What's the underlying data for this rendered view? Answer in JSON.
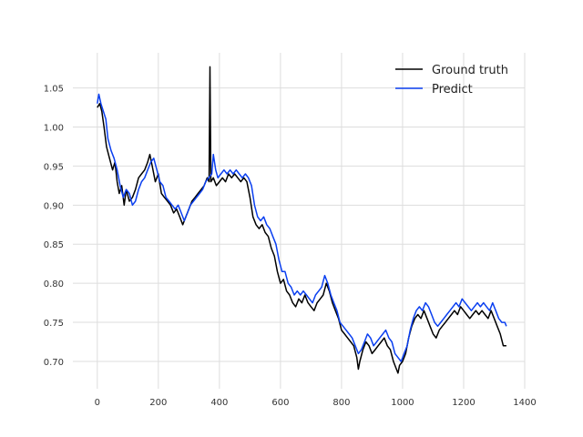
{
  "chart_data": {
    "type": "line",
    "title": "",
    "xlabel": "",
    "ylabel": "",
    "xlim": [
      -80,
      1400
    ],
    "ylim": [
      0.665,
      1.095
    ],
    "xticks": [
      0,
      200,
      400,
      600,
      800,
      1000,
      1200,
      1400
    ],
    "yticks": [
      0.7,
      0.75,
      0.8,
      0.85,
      0.9,
      0.95,
      1.0,
      1.05
    ],
    "xtick_labels": [
      "0",
      "200",
      "400",
      "600",
      "800",
      "1000",
      "1200",
      "1400"
    ],
    "ytick_labels": [
      "0.70",
      "0.75",
      "0.80",
      "0.85",
      "0.90",
      "0.95",
      "1.00",
      "1.05"
    ],
    "grid": true,
    "legend_position": "top-right",
    "series": [
      {
        "name": "Ground truth",
        "color": "#000000",
        "points": [
          [
            0,
            1.025
          ],
          [
            8,
            1.03
          ],
          [
            15,
            1.02
          ],
          [
            22,
            1.0
          ],
          [
            30,
            0.975
          ],
          [
            40,
            0.96
          ],
          [
            50,
            0.945
          ],
          [
            58,
            0.955
          ],
          [
            65,
            0.93
          ],
          [
            72,
            0.915
          ],
          [
            80,
            0.925
          ],
          [
            88,
            0.9
          ],
          [
            95,
            0.92
          ],
          [
            105,
            0.905
          ],
          [
            115,
            0.91
          ],
          [
            125,
            0.92
          ],
          [
            135,
            0.935
          ],
          [
            145,
            0.94
          ],
          [
            155,
            0.945
          ],
          [
            165,
            0.955
          ],
          [
            172,
            0.965
          ],
          [
            180,
            0.95
          ],
          [
            190,
            0.93
          ],
          [
            200,
            0.94
          ],
          [
            210,
            0.915
          ],
          [
            220,
            0.91
          ],
          [
            230,
            0.905
          ],
          [
            240,
            0.9
          ],
          [
            250,
            0.89
          ],
          [
            260,
            0.895
          ],
          [
            270,
            0.885
          ],
          [
            280,
            0.875
          ],
          [
            290,
            0.885
          ],
          [
            300,
            0.895
          ],
          [
            310,
            0.905
          ],
          [
            320,
            0.91
          ],
          [
            330,
            0.915
          ],
          [
            340,
            0.92
          ],
          [
            350,
            0.925
          ],
          [
            360,
            0.935
          ],
          [
            366,
            0.93
          ],
          [
            369,
            1.077
          ],
          [
            372,
            0.93
          ],
          [
            380,
            0.935
          ],
          [
            390,
            0.925
          ],
          [
            400,
            0.93
          ],
          [
            410,
            0.935
          ],
          [
            420,
            0.93
          ],
          [
            430,
            0.94
          ],
          [
            440,
            0.935
          ],
          [
            450,
            0.94
          ],
          [
            460,
            0.935
          ],
          [
            470,
            0.93
          ],
          [
            480,
            0.935
          ],
          [
            490,
            0.93
          ],
          [
            500,
            0.91
          ],
          [
            510,
            0.885
          ],
          [
            520,
            0.875
          ],
          [
            530,
            0.87
          ],
          [
            540,
            0.875
          ],
          [
            550,
            0.865
          ],
          [
            560,
            0.86
          ],
          [
            570,
            0.845
          ],
          [
            580,
            0.835
          ],
          [
            590,
            0.815
          ],
          [
            600,
            0.8
          ],
          [
            610,
            0.805
          ],
          [
            620,
            0.79
          ],
          [
            630,
            0.785
          ],
          [
            640,
            0.775
          ],
          [
            650,
            0.77
          ],
          [
            660,
            0.78
          ],
          [
            670,
            0.775
          ],
          [
            680,
            0.785
          ],
          [
            690,
            0.775
          ],
          [
            700,
            0.77
          ],
          [
            710,
            0.765
          ],
          [
            720,
            0.775
          ],
          [
            730,
            0.78
          ],
          [
            740,
            0.785
          ],
          [
            750,
            0.8
          ],
          [
            760,
            0.79
          ],
          [
            770,
            0.775
          ],
          [
            780,
            0.765
          ],
          [
            790,
            0.755
          ],
          [
            800,
            0.74
          ],
          [
            810,
            0.735
          ],
          [
            820,
            0.73
          ],
          [
            830,
            0.725
          ],
          [
            840,
            0.72
          ],
          [
            850,
            0.705
          ],
          [
            855,
            0.69
          ],
          [
            860,
            0.7
          ],
          [
            870,
            0.715
          ],
          [
            880,
            0.725
          ],
          [
            890,
            0.72
          ],
          [
            900,
            0.71
          ],
          [
            910,
            0.715
          ],
          [
            920,
            0.72
          ],
          [
            930,
            0.725
          ],
          [
            940,
            0.73
          ],
          [
            950,
            0.72
          ],
          [
            960,
            0.715
          ],
          [
            970,
            0.7
          ],
          [
            980,
            0.69
          ],
          [
            985,
            0.685
          ],
          [
            990,
            0.695
          ],
          [
            1000,
            0.7
          ],
          [
            1010,
            0.71
          ],
          [
            1020,
            0.73
          ],
          [
            1030,
            0.745
          ],
          [
            1040,
            0.755
          ],
          [
            1050,
            0.76
          ],
          [
            1060,
            0.755
          ],
          [
            1070,
            0.765
          ],
          [
            1080,
            0.755
          ],
          [
            1090,
            0.745
          ],
          [
            1100,
            0.735
          ],
          [
            1110,
            0.73
          ],
          [
            1120,
            0.74
          ],
          [
            1130,
            0.745
          ],
          [
            1140,
            0.75
          ],
          [
            1150,
            0.755
          ],
          [
            1160,
            0.76
          ],
          [
            1170,
            0.765
          ],
          [
            1180,
            0.76
          ],
          [
            1190,
            0.77
          ],
          [
            1200,
            0.765
          ],
          [
            1210,
            0.76
          ],
          [
            1220,
            0.755
          ],
          [
            1230,
            0.76
          ],
          [
            1240,
            0.765
          ],
          [
            1250,
            0.76
          ],
          [
            1260,
            0.765
          ],
          [
            1270,
            0.76
          ],
          [
            1280,
            0.755
          ],
          [
            1290,
            0.765
          ],
          [
            1300,
            0.755
          ],
          [
            1310,
            0.745
          ],
          [
            1320,
            0.735
          ],
          [
            1330,
            0.72
          ],
          [
            1340,
            0.72
          ]
        ]
      },
      {
        "name": "Predict",
        "color": "#0a3ff0",
        "points": [
          [
            0,
            1.03
          ],
          [
            5,
            1.042
          ],
          [
            12,
            1.03
          ],
          [
            20,
            1.02
          ],
          [
            28,
            1.01
          ],
          [
            35,
            0.985
          ],
          [
            45,
            0.97
          ],
          [
            55,
            0.96
          ],
          [
            65,
            0.945
          ],
          [
            75,
            0.925
          ],
          [
            85,
            0.91
          ],
          [
            95,
            0.92
          ],
          [
            105,
            0.915
          ],
          [
            115,
            0.9
          ],
          [
            125,
            0.905
          ],
          [
            135,
            0.92
          ],
          [
            145,
            0.93
          ],
          [
            155,
            0.935
          ],
          [
            165,
            0.945
          ],
          [
            175,
            0.955
          ],
          [
            185,
            0.96
          ],
          [
            195,
            0.945
          ],
          [
            205,
            0.93
          ],
          [
            215,
            0.925
          ],
          [
            225,
            0.91
          ],
          [
            235,
            0.905
          ],
          [
            245,
            0.9
          ],
          [
            255,
            0.895
          ],
          [
            265,
            0.9
          ],
          [
            275,
            0.89
          ],
          [
            285,
            0.88
          ],
          [
            295,
            0.89
          ],
          [
            305,
            0.9
          ],
          [
            315,
            0.905
          ],
          [
            325,
            0.91
          ],
          [
            335,
            0.915
          ],
          [
            345,
            0.92
          ],
          [
            355,
            0.93
          ],
          [
            365,
            0.935
          ],
          [
            375,
            0.94
          ],
          [
            380,
            0.965
          ],
          [
            388,
            0.945
          ],
          [
            395,
            0.935
          ],
          [
            405,
            0.94
          ],
          [
            415,
            0.945
          ],
          [
            425,
            0.94
          ],
          [
            435,
            0.945
          ],
          [
            445,
            0.94
          ],
          [
            455,
            0.945
          ],
          [
            465,
            0.94
          ],
          [
            475,
            0.935
          ],
          [
            485,
            0.94
          ],
          [
            495,
            0.935
          ],
          [
            505,
            0.925
          ],
          [
            515,
            0.9
          ],
          [
            525,
            0.885
          ],
          [
            535,
            0.88
          ],
          [
            545,
            0.885
          ],
          [
            555,
            0.875
          ],
          [
            565,
            0.87
          ],
          [
            575,
            0.86
          ],
          [
            585,
            0.85
          ],
          [
            595,
            0.83
          ],
          [
            605,
            0.815
          ],
          [
            615,
            0.815
          ],
          [
            625,
            0.8
          ],
          [
            635,
            0.795
          ],
          [
            645,
            0.785
          ],
          [
            655,
            0.79
          ],
          [
            665,
            0.785
          ],
          [
            675,
            0.79
          ],
          [
            685,
            0.785
          ],
          [
            695,
            0.78
          ],
          [
            705,
            0.775
          ],
          [
            715,
            0.785
          ],
          [
            725,
            0.79
          ],
          [
            735,
            0.795
          ],
          [
            745,
            0.81
          ],
          [
            755,
            0.8
          ],
          [
            765,
            0.785
          ],
          [
            775,
            0.775
          ],
          [
            785,
            0.765
          ],
          [
            795,
            0.75
          ],
          [
            805,
            0.745
          ],
          [
            815,
            0.74
          ],
          [
            825,
            0.735
          ],
          [
            835,
            0.73
          ],
          [
            845,
            0.72
          ],
          [
            855,
            0.71
          ],
          [
            865,
            0.715
          ],
          [
            875,
            0.725
          ],
          [
            885,
            0.735
          ],
          [
            895,
            0.73
          ],
          [
            905,
            0.72
          ],
          [
            915,
            0.725
          ],
          [
            925,
            0.73
          ],
          [
            935,
            0.735
          ],
          [
            945,
            0.74
          ],
          [
            955,
            0.73
          ],
          [
            965,
            0.725
          ],
          [
            975,
            0.71
          ],
          [
            985,
            0.705
          ],
          [
            995,
            0.7
          ],
          [
            1005,
            0.71
          ],
          [
            1015,
            0.72
          ],
          [
            1025,
            0.74
          ],
          [
            1035,
            0.755
          ],
          [
            1045,
            0.765
          ],
          [
            1055,
            0.77
          ],
          [
            1065,
            0.765
          ],
          [
            1075,
            0.775
          ],
          [
            1085,
            0.77
          ],
          [
            1095,
            0.76
          ],
          [
            1105,
            0.75
          ],
          [
            1115,
            0.745
          ],
          [
            1125,
            0.75
          ],
          [
            1135,
            0.755
          ],
          [
            1145,
            0.76
          ],
          [
            1155,
            0.765
          ],
          [
            1165,
            0.77
          ],
          [
            1175,
            0.775
          ],
          [
            1185,
            0.77
          ],
          [
            1195,
            0.78
          ],
          [
            1205,
            0.775
          ],
          [
            1215,
            0.77
          ],
          [
            1225,
            0.765
          ],
          [
            1235,
            0.77
          ],
          [
            1245,
            0.775
          ],
          [
            1255,
            0.77
          ],
          [
            1265,
            0.775
          ],
          [
            1275,
            0.77
          ],
          [
            1285,
            0.765
          ],
          [
            1295,
            0.775
          ],
          [
            1305,
            0.765
          ],
          [
            1315,
            0.755
          ],
          [
            1325,
            0.75
          ],
          [
            1335,
            0.75
          ],
          [
            1340,
            0.745
          ]
        ]
      }
    ]
  }
}
